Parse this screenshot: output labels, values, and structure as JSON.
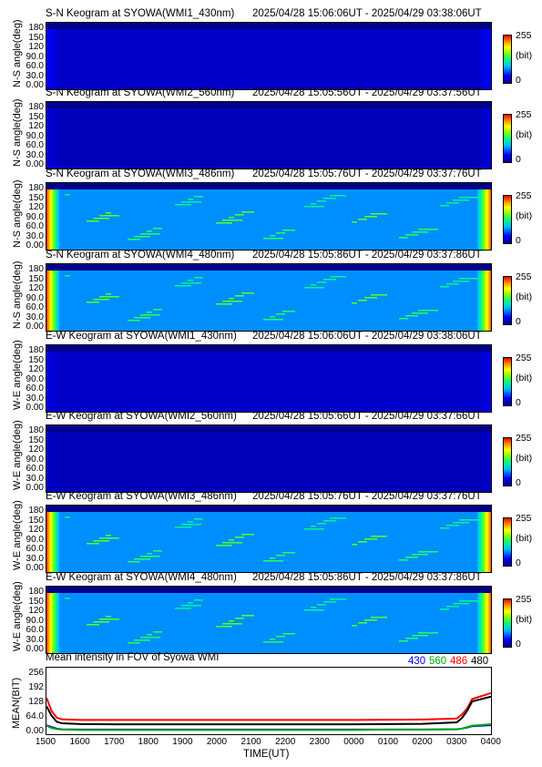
{
  "panels": [
    {
      "title": "S-N Keogram at SYOWA(WMI1_430nm)",
      "time": "2025/04/28 15:06:06UT - 2025/04/29 03:38:06UT",
      "ylabel": "N-S angle(deg)",
      "level": 0.08,
      "edge": 0.15
    },
    {
      "title": "S-N Keogram at SYOWA(WMI2_560nm)",
      "time": "2025/04/28 15:05:56UT - 2025/04/29 03:37:56UT",
      "ylabel": "N-S angle(deg)",
      "level": 0.06,
      "edge": 0.1
    },
    {
      "title": "S-N Keogram at SYOWA(WMI3_486nm)",
      "time": "2025/04/28 15:05:76UT - 2025/04/29 03:37:76UT",
      "ylabel": "N-S angle(deg)",
      "level": 0.3,
      "edge": 0.95
    },
    {
      "title": "S-N Keogram at SYOWA(WMI4_480nm)",
      "time": "2025/04/28 15:05:86UT - 2025/04/29 03:37:86UT",
      "ylabel": "N-S angle(deg)",
      "level": 0.3,
      "edge": 0.95
    },
    {
      "title": "E-W Keogram at SYOWA(WMI1_430nm)",
      "time": "2025/04/28 15:06:06UT - 2025/04/29 03:38:06UT",
      "ylabel": "W-E angle(deg)",
      "level": 0.08,
      "edge": 0.12
    },
    {
      "title": "E-W Keogram at SYOWA(WMI2_560nm)",
      "time": "2025/04/28 15:05:66UT - 2025/04/29 03:37:66UT",
      "ylabel": "W-E angle(deg)",
      "level": 0.06,
      "edge": 0.08
    },
    {
      "title": "E-W Keogram at SYOWA(WMI3_486nm)",
      "time": "2025/04/28 15:05:76UT - 2025/04/29 03:37:76UT",
      "ylabel": "W-E angle(deg)",
      "level": 0.3,
      "edge": 0.95
    },
    {
      "title": "E-W Keogram at SYOWA(WMI4_480nm)",
      "time": "2025/04/28 15:05:86UT - 2025/04/29 03:37:86UT",
      "ylabel": "W-E angle(deg)",
      "level": 0.3,
      "edge": 0.95
    }
  ],
  "yticks": [
    "180",
    "150",
    "120",
    "90.0",
    "60.0",
    "30.0",
    "0.00"
  ],
  "colorbar": {
    "max": "255",
    "unit": "(bit)",
    "min": "0"
  },
  "chart_data": {
    "type": "line",
    "title": "Mean intensity in FOV of Syowa WMI",
    "xlabel": "TIME(UT)",
    "ylabel": "MEAN(BIT)",
    "xticks": [
      "1500",
      "1600",
      "1700",
      "1800",
      "1900",
      "2000",
      "2100",
      "2200",
      "2300",
      "0000",
      "0100",
      "0200",
      "0300",
      "0400"
    ],
    "yticks": [
      "256",
      "192",
      "128",
      "64.0",
      "0.00"
    ],
    "ylim": [
      0,
      256
    ],
    "x": [
      1500,
      1515,
      1530,
      1545,
      1600,
      1700,
      1800,
      1900,
      2000,
      2100,
      2200,
      2300,
      2400,
      2500,
      2600,
      2700,
      2715,
      2730,
      2745,
      2800
    ],
    "series": [
      {
        "name": "430",
        "color": "#0000ff",
        "values": [
          30,
          22,
          16,
          13,
          12,
          12,
          12,
          12,
          12,
          12,
          12,
          12,
          12,
          12,
          12,
          13,
          16,
          20,
          26,
          30
        ]
      },
      {
        "name": "560",
        "color": "#00aa00",
        "values": [
          28,
          18,
          14,
          12,
          10,
          10,
          10,
          10,
          10,
          10,
          10,
          10,
          10,
          12,
          12,
          14,
          16,
          22,
          28,
          34
        ]
      },
      {
        "name": "486",
        "color": "#ff0000",
        "values": [
          145,
          90,
          62,
          55,
          52,
          52,
          52,
          52,
          52,
          52,
          52,
          52,
          52,
          53,
          54,
          58,
          75,
          100,
          140,
          165
        ]
      },
      {
        "name": "480",
        "color": "#000000",
        "values": [
          110,
          70,
          45,
          38,
          35,
          34,
          34,
          34,
          34,
          34,
          34,
          34,
          34,
          35,
          36,
          42,
          60,
          90,
          130,
          150
        ]
      }
    ]
  }
}
